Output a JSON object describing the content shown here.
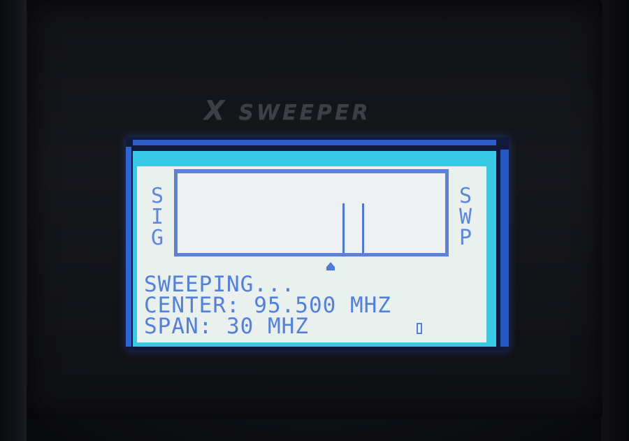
{
  "device": {
    "brand_mark": "X",
    "brand_name": "SWEEPER"
  },
  "display": {
    "left_label": "SIG",
    "right_label": "SWP",
    "status_line": "SWEEPING...",
    "center_line": "CENTER: 95.500 MHZ",
    "span_line": "SPAN: 30 MHZ",
    "peaks": [
      0.62,
      0.62
    ],
    "marker_icon": "triangle-marker-icon",
    "activity_icon": "activity-indicator-icon",
    "colors": {
      "lcd_text": "#4f80e2",
      "lcd_background": "#eaf0ee",
      "backlight": "#38c9e6"
    }
  }
}
